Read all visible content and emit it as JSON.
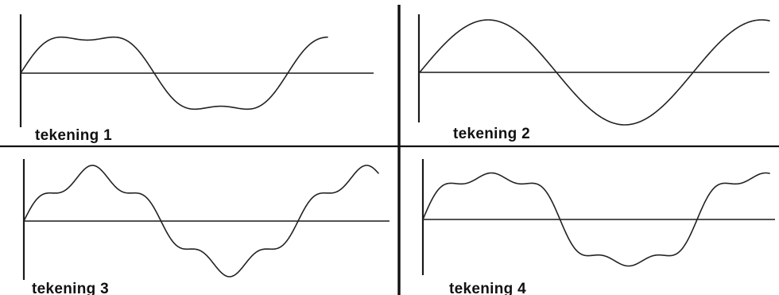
{
  "figure": {
    "panels": [
      {
        "id": 1,
        "caption": "tekening 1",
        "waveform": "fundamental plus third harmonic (flattened crest, dip in trough)"
      },
      {
        "id": 2,
        "caption": "tekening 2",
        "waveform": "pure sine"
      },
      {
        "id": 3,
        "caption": "tekening 3",
        "waveform": "fundamental plus fifth harmonic (rippled crests)"
      },
      {
        "id": 4,
        "caption": "tekening 4",
        "waveform": "fundamental plus third and fifth harmonics"
      }
    ],
    "colors": {
      "ink": "#222222",
      "background": "#ffffff"
    }
  }
}
